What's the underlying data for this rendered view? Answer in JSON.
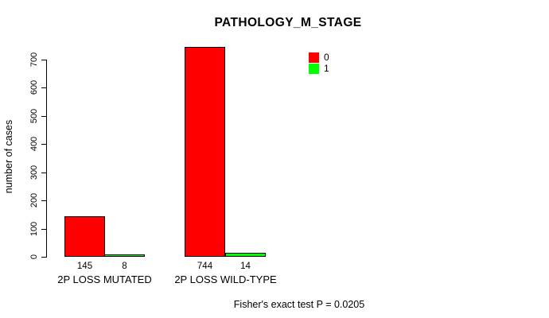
{
  "chart_data": {
    "type": "bar",
    "title": "PATHOLOGY_M_STAGE",
    "xlabel": "",
    "ylabel": "number of cases",
    "ylim": [
      0,
      700
    ],
    "yticks": [
      0,
      100,
      200,
      300,
      400,
      500,
      600,
      700
    ],
    "categories": [
      "2P LOSS MUTATED",
      "2P LOSS WILD-TYPE"
    ],
    "series": [
      {
        "name": "0",
        "color": "#ff0000",
        "values": [
          145,
          744
        ]
      },
      {
        "name": "1",
        "color": "#00ff00",
        "values": [
          8,
          14
        ]
      }
    ],
    "bar_value_labels": [
      [
        "145",
        "8"
      ],
      [
        "744",
        "14"
      ]
    ],
    "legend_position": "top-right",
    "grid": false,
    "annotation": "Fisher's exact test P = 0.0205"
  },
  "colors": {
    "series_0": "#ff0000",
    "series_1": "#00ff00",
    "axis": "#000000",
    "background": "#ffffff"
  }
}
